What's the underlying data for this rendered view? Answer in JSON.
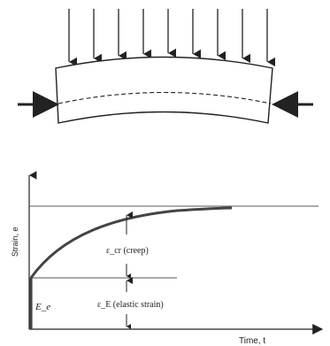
{
  "diagram": {
    "beam": {
      "load_arrow_count": 9,
      "axial_arrow_count": 2
    },
    "graph": {
      "x_axis_label": "Time, t",
      "y_axis_label": "Strain, e",
      "creep_label": "ε_cr (creep)",
      "elastic_label": "ε_E (elastic strain)",
      "initial_marker_label": "E_e"
    },
    "colors": {
      "ink": "#222222",
      "curve": "#444444",
      "guide": "#555555"
    }
  }
}
